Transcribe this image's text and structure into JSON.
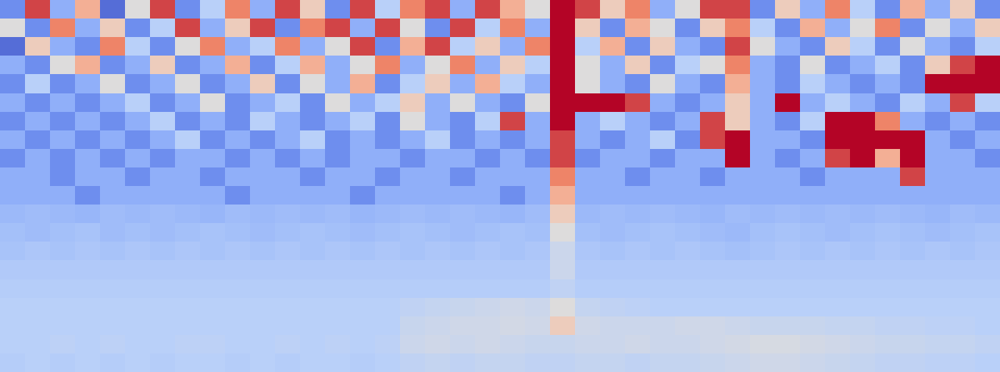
{
  "chart_data": {
    "type": "heatmap",
    "tick_labels": false,
    "grid": false,
    "zlim": [
      0,
      1
    ],
    "z": [
      [
        0.2,
        0.9,
        0.3,
        0.7,
        0.1,
        0.5,
        0.9,
        0.2,
        0.4,
        0.8,
        0.3,
        0.9,
        0.6,
        0.2,
        0.9,
        0.4,
        0.8,
        0.9,
        0.3,
        0.9,
        0.7,
        0.5,
        1.0,
        0.9,
        0.6,
        0.8,
        0.3,
        0.5,
        0.9,
        0.9,
        0.2,
        0.6,
        0.3,
        0.8,
        0.4,
        0.2,
        0.7,
        0.3,
        0.6,
        0.2
      ],
      [
        0.5,
        0.2,
        0.8,
        0.3,
        0.6,
        0.2,
        0.4,
        0.9,
        0.3,
        0.6,
        0.9,
        0.2,
        0.8,
        0.9,
        0.3,
        0.9,
        0.5,
        0.2,
        0.9,
        0.4,
        0.8,
        0.3,
        1.0,
        0.6,
        0.2,
        0.7,
        0.5,
        0.2,
        0.6,
        0.8,
        0.4,
        0.2,
        0.7,
        0.3,
        0.5,
        0.8,
        0.2,
        0.5,
        0.3,
        0.6
      ],
      [
        0.1,
        0.6,
        0.3,
        0.2,
        0.8,
        0.4,
        0.2,
        0.5,
        0.8,
        0.3,
        0.4,
        0.8,
        0.3,
        0.5,
        0.9,
        0.2,
        0.7,
        0.9,
        0.4,
        0.6,
        0.3,
        0.8,
        1.0,
        0.4,
        0.7,
        0.2,
        0.6,
        0.3,
        0.2,
        0.9,
        0.5,
        0.3,
        0.2,
        0.6,
        0.4,
        0.2,
        0.5,
        0.3,
        0.2,
        0.4
      ],
      [
        0.3,
        0.2,
        0.5,
        0.7,
        0.2,
        0.3,
        0.6,
        0.2,
        0.3,
        0.7,
        0.2,
        0.4,
        0.7,
        0.3,
        0.5,
        0.8,
        0.3,
        0.5,
        0.8,
        0.3,
        0.6,
        0.4,
        1.0,
        0.5,
        0.3,
        0.6,
        0.2,
        0.4,
        0.5,
        0.8,
        0.3,
        0.2,
        0.5,
        0.2,
        0.3,
        0.4,
        0.2,
        0.6,
        0.9,
        1.0
      ],
      [
        0.2,
        0.4,
        0.2,
        0.3,
        0.5,
        0.2,
        0.3,
        0.5,
        0.2,
        0.3,
        0.6,
        0.2,
        0.5,
        0.3,
        0.7,
        0.2,
        0.4,
        0.6,
        0.3,
        0.7,
        0.4,
        0.3,
        1.0,
        0.5,
        0.3,
        0.2,
        0.5,
        0.3,
        0.2,
        0.7,
        0.3,
        0.2,
        0.4,
        0.3,
        0.2,
        0.3,
        0.2,
        1.0,
        1.0,
        1.0
      ],
      [
        0.3,
        0.2,
        0.3,
        0.2,
        0.3,
        0.4,
        0.2,
        0.3,
        0.5,
        0.2,
        0.3,
        0.4,
        0.2,
        0.5,
        0.3,
        0.4,
        0.6,
        0.3,
        0.5,
        0.3,
        0.2,
        0.5,
        1.0,
        1.0,
        1.0,
        0.9,
        0.3,
        0.2,
        0.3,
        0.6,
        0.3,
        1.0,
        0.3,
        0.4,
        0.3,
        0.2,
        0.4,
        0.3,
        0.9,
        0.4
      ],
      [
        0.2,
        0.3,
        0.2,
        0.3,
        0.2,
        0.3,
        0.4,
        0.2,
        0.3,
        0.2,
        0.4,
        0.3,
        0.2,
        0.3,
        0.4,
        0.2,
        0.5,
        0.3,
        0.2,
        0.4,
        0.9,
        0.3,
        1.0,
        0.3,
        0.4,
        0.3,
        0.2,
        0.3,
        0.9,
        0.6,
        0.3,
        0.2,
        0.4,
        1.0,
        1.0,
        0.8,
        0.3,
        0.2,
        0.3,
        0.2
      ],
      [
        0.3,
        0.2,
        0.3,
        0.2,
        0.3,
        0.2,
        0.3,
        0.4,
        0.2,
        0.3,
        0.2,
        0.3,
        0.4,
        0.2,
        0.3,
        0.2,
        0.3,
        0.4,
        0.2,
        0.3,
        0.2,
        0.3,
        0.9,
        0.3,
        0.2,
        0.3,
        0.4,
        0.2,
        0.9,
        1.0,
        0.3,
        0.3,
        0.2,
        1.0,
        1.0,
        1.0,
        1.0,
        0.3,
        0.2,
        0.3
      ],
      [
        0.2,
        0.3,
        0.2,
        0.3,
        0.2,
        0.3,
        0.2,
        0.3,
        0.3,
        0.2,
        0.3,
        0.2,
        0.3,
        0.2,
        0.3,
        0.3,
        0.2,
        0.3,
        0.3,
        0.2,
        0.3,
        0.2,
        0.9,
        0.2,
        0.3,
        0.3,
        0.2,
        0.3,
        0.3,
        1.0,
        0.3,
        0.2,
        0.3,
        0.9,
        1.0,
        0.7,
        1.0,
        0.3,
        0.3,
        0.2
      ],
      [
        0.3,
        0.3,
        0.2,
        0.3,
        0.3,
        0.2,
        0.3,
        0.3,
        0.2,
        0.3,
        0.3,
        0.3,
        0.2,
        0.3,
        0.3,
        0.2,
        0.3,
        0.3,
        0.2,
        0.3,
        0.3,
        0.3,
        0.8,
        0.3,
        0.3,
        0.2,
        0.3,
        0.3,
        0.2,
        0.3,
        0.3,
        0.3,
        0.2,
        0.3,
        0.3,
        0.3,
        0.9,
        0.3,
        0.3,
        0.3
      ],
      [
        0.3,
        0.3,
        0.3,
        0.2,
        0.3,
        0.3,
        0.3,
        0.3,
        0.3,
        0.2,
        0.3,
        0.3,
        0.3,
        0.3,
        0.2,
        0.3,
        0.3,
        0.3,
        0.3,
        0.3,
        0.2,
        0.3,
        0.7,
        0.3,
        0.3,
        0.3,
        0.3,
        0.3,
        0.3,
        0.3,
        0.3,
        0.3,
        0.3,
        0.3,
        0.3,
        0.3,
        0.3,
        0.3,
        0.3,
        0.3
      ],
      [
        0.33,
        0.34,
        0.33,
        0.32,
        0.34,
        0.33,
        0.34,
        0.33,
        0.32,
        0.34,
        0.33,
        0.34,
        0.33,
        0.34,
        0.32,
        0.33,
        0.34,
        0.33,
        0.34,
        0.33,
        0.32,
        0.34,
        0.6,
        0.33,
        0.34,
        0.33,
        0.34,
        0.33,
        0.32,
        0.34,
        0.33,
        0.34,
        0.33,
        0.34,
        0.33,
        0.34,
        0.33,
        0.32,
        0.34,
        0.33
      ],
      [
        0.35,
        0.34,
        0.35,
        0.36,
        0.34,
        0.35,
        0.34,
        0.35,
        0.36,
        0.35,
        0.34,
        0.35,
        0.36,
        0.35,
        0.34,
        0.35,
        0.36,
        0.35,
        0.34,
        0.35,
        0.36,
        0.35,
        0.5,
        0.35,
        0.34,
        0.35,
        0.36,
        0.35,
        0.34,
        0.33,
        0.35,
        0.36,
        0.35,
        0.34,
        0.35,
        0.36,
        0.35,
        0.34,
        0.35,
        0.36
      ],
      [
        0.36,
        0.37,
        0.36,
        0.37,
        0.36,
        0.37,
        0.36,
        0.37,
        0.36,
        0.37,
        0.36,
        0.37,
        0.36,
        0.37,
        0.36,
        0.37,
        0.36,
        0.37,
        0.36,
        0.37,
        0.36,
        0.37,
        0.45,
        0.37,
        0.36,
        0.37,
        0.36,
        0.37,
        0.36,
        0.35,
        0.36,
        0.37,
        0.36,
        0.37,
        0.36,
        0.37,
        0.36,
        0.37,
        0.36,
        0.37
      ],
      [
        0.38,
        0.38,
        0.38,
        0.38,
        0.38,
        0.38,
        0.38,
        0.38,
        0.38,
        0.38,
        0.38,
        0.38,
        0.38,
        0.38,
        0.38,
        0.38,
        0.38,
        0.38,
        0.38,
        0.38,
        0.38,
        0.38,
        0.45,
        0.38,
        0.38,
        0.38,
        0.38,
        0.38,
        0.38,
        0.38,
        0.38,
        0.38,
        0.38,
        0.38,
        0.38,
        0.38,
        0.38,
        0.38,
        0.38,
        0.38
      ],
      [
        0.39,
        0.39,
        0.39,
        0.39,
        0.39,
        0.39,
        0.39,
        0.39,
        0.39,
        0.39,
        0.39,
        0.39,
        0.39,
        0.39,
        0.39,
        0.39,
        0.39,
        0.39,
        0.39,
        0.39,
        0.39,
        0.39,
        0.42,
        0.39,
        0.39,
        0.39,
        0.39,
        0.39,
        0.39,
        0.39,
        0.39,
        0.39,
        0.39,
        0.39,
        0.39,
        0.39,
        0.39,
        0.39,
        0.39,
        0.39
      ],
      [
        0.4,
        0.4,
        0.4,
        0.4,
        0.4,
        0.4,
        0.4,
        0.4,
        0.4,
        0.4,
        0.4,
        0.4,
        0.4,
        0.4,
        0.4,
        0.4,
        0.42,
        0.43,
        0.44,
        0.45,
        0.46,
        0.45,
        0.5,
        0.43,
        0.42,
        0.41,
        0.4,
        0.4,
        0.4,
        0.4,
        0.4,
        0.4,
        0.4,
        0.4,
        0.4,
        0.4,
        0.4,
        0.4,
        0.4,
        0.4
      ],
      [
        0.4,
        0.4,
        0.4,
        0.4,
        0.4,
        0.4,
        0.4,
        0.4,
        0.4,
        0.4,
        0.4,
        0.4,
        0.4,
        0.4,
        0.4,
        0.4,
        0.44,
        0.45,
        0.46,
        0.46,
        0.47,
        0.46,
        0.6,
        0.46,
        0.45,
        0.45,
        0.45,
        0.46,
        0.46,
        0.45,
        0.44,
        0.44,
        0.44,
        0.43,
        0.43,
        0.42,
        0.42,
        0.41,
        0.41,
        0.4
      ],
      [
        0.4,
        0.4,
        0.41,
        0.4,
        0.41,
        0.4,
        0.4,
        0.41,
        0.41,
        0.4,
        0.4,
        0.41,
        0.4,
        0.41,
        0.4,
        0.41,
        0.45,
        0.46,
        0.45,
        0.46,
        0.45,
        0.44,
        0.44,
        0.45,
        0.45,
        0.46,
        0.45,
        0.45,
        0.46,
        0.47,
        0.48,
        0.48,
        0.47,
        0.46,
        0.45,
        0.44,
        0.44,
        0.43,
        0.43,
        0.42
      ],
      [
        0.39,
        0.4,
        0.39,
        0.4,
        0.39,
        0.4,
        0.39,
        0.4,
        0.4,
        0.39,
        0.4,
        0.39,
        0.4,
        0.4,
        0.39,
        0.4,
        0.42,
        0.43,
        0.42,
        0.43,
        0.43,
        0.42,
        0.42,
        0.43,
        0.43,
        0.42,
        0.43,
        0.43,
        0.44,
        0.45,
        0.46,
        0.46,
        0.45,
        0.44,
        0.43,
        0.42,
        0.42,
        0.41,
        0.41,
        0.4
      ]
    ]
  }
}
